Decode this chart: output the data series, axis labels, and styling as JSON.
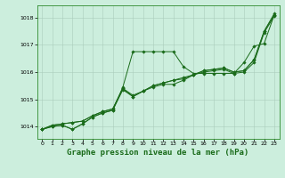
{
  "background_color": "#cceedd",
  "grid_color": "#aaccbb",
  "line_color": "#1a6b1a",
  "marker_color": "#1a6b1a",
  "title": "Graphe pression niveau de la mer (hPa)",
  "title_fontsize": 6.5,
  "xlim": [
    -0.5,
    23.5
  ],
  "ylim": [
    1013.55,
    1018.45
  ],
  "yticks": [
    1014,
    1015,
    1016,
    1017,
    1018
  ],
  "xticks": [
    0,
    1,
    2,
    3,
    4,
    5,
    6,
    7,
    8,
    9,
    10,
    11,
    12,
    13,
    14,
    15,
    16,
    17,
    18,
    19,
    20,
    21,
    22,
    23
  ],
  "series": [
    [
      1013.9,
      1014.0,
      1014.05,
      1013.9,
      1014.1,
      1014.35,
      1014.5,
      1014.6,
      1015.45,
      1016.75,
      1016.75,
      1016.75,
      1016.75,
      1016.75,
      1016.2,
      1015.95,
      1015.95,
      1015.95,
      1015.95,
      1015.95,
      1016.35,
      1016.95,
      1017.05,
      1018.1
    ],
    [
      1013.9,
      1014.0,
      1014.05,
      1013.9,
      1014.1,
      1014.35,
      1014.5,
      1014.6,
      1015.35,
      1015.1,
      1015.3,
      1015.45,
      1015.55,
      1015.55,
      1015.7,
      1015.9,
      1016.0,
      1016.05,
      1016.1,
      1015.95,
      1016.0,
      1016.35,
      1017.45,
      1018.05
    ],
    [
      1013.9,
      1014.05,
      1014.1,
      1014.15,
      1014.2,
      1014.4,
      1014.55,
      1014.65,
      1015.4,
      1015.15,
      1015.3,
      1015.5,
      1015.6,
      1015.7,
      1015.75,
      1015.9,
      1016.05,
      1016.1,
      1016.15,
      1016.0,
      1016.05,
      1016.45,
      1017.5,
      1018.1
    ],
    [
      1013.9,
      1014.05,
      1014.1,
      1014.15,
      1014.2,
      1014.4,
      1014.55,
      1014.65,
      1015.4,
      1015.1,
      1015.3,
      1015.5,
      1015.6,
      1015.7,
      1015.8,
      1015.9,
      1016.05,
      1016.1,
      1016.15,
      1016.0,
      1016.05,
      1016.45,
      1017.5,
      1018.15
    ]
  ]
}
